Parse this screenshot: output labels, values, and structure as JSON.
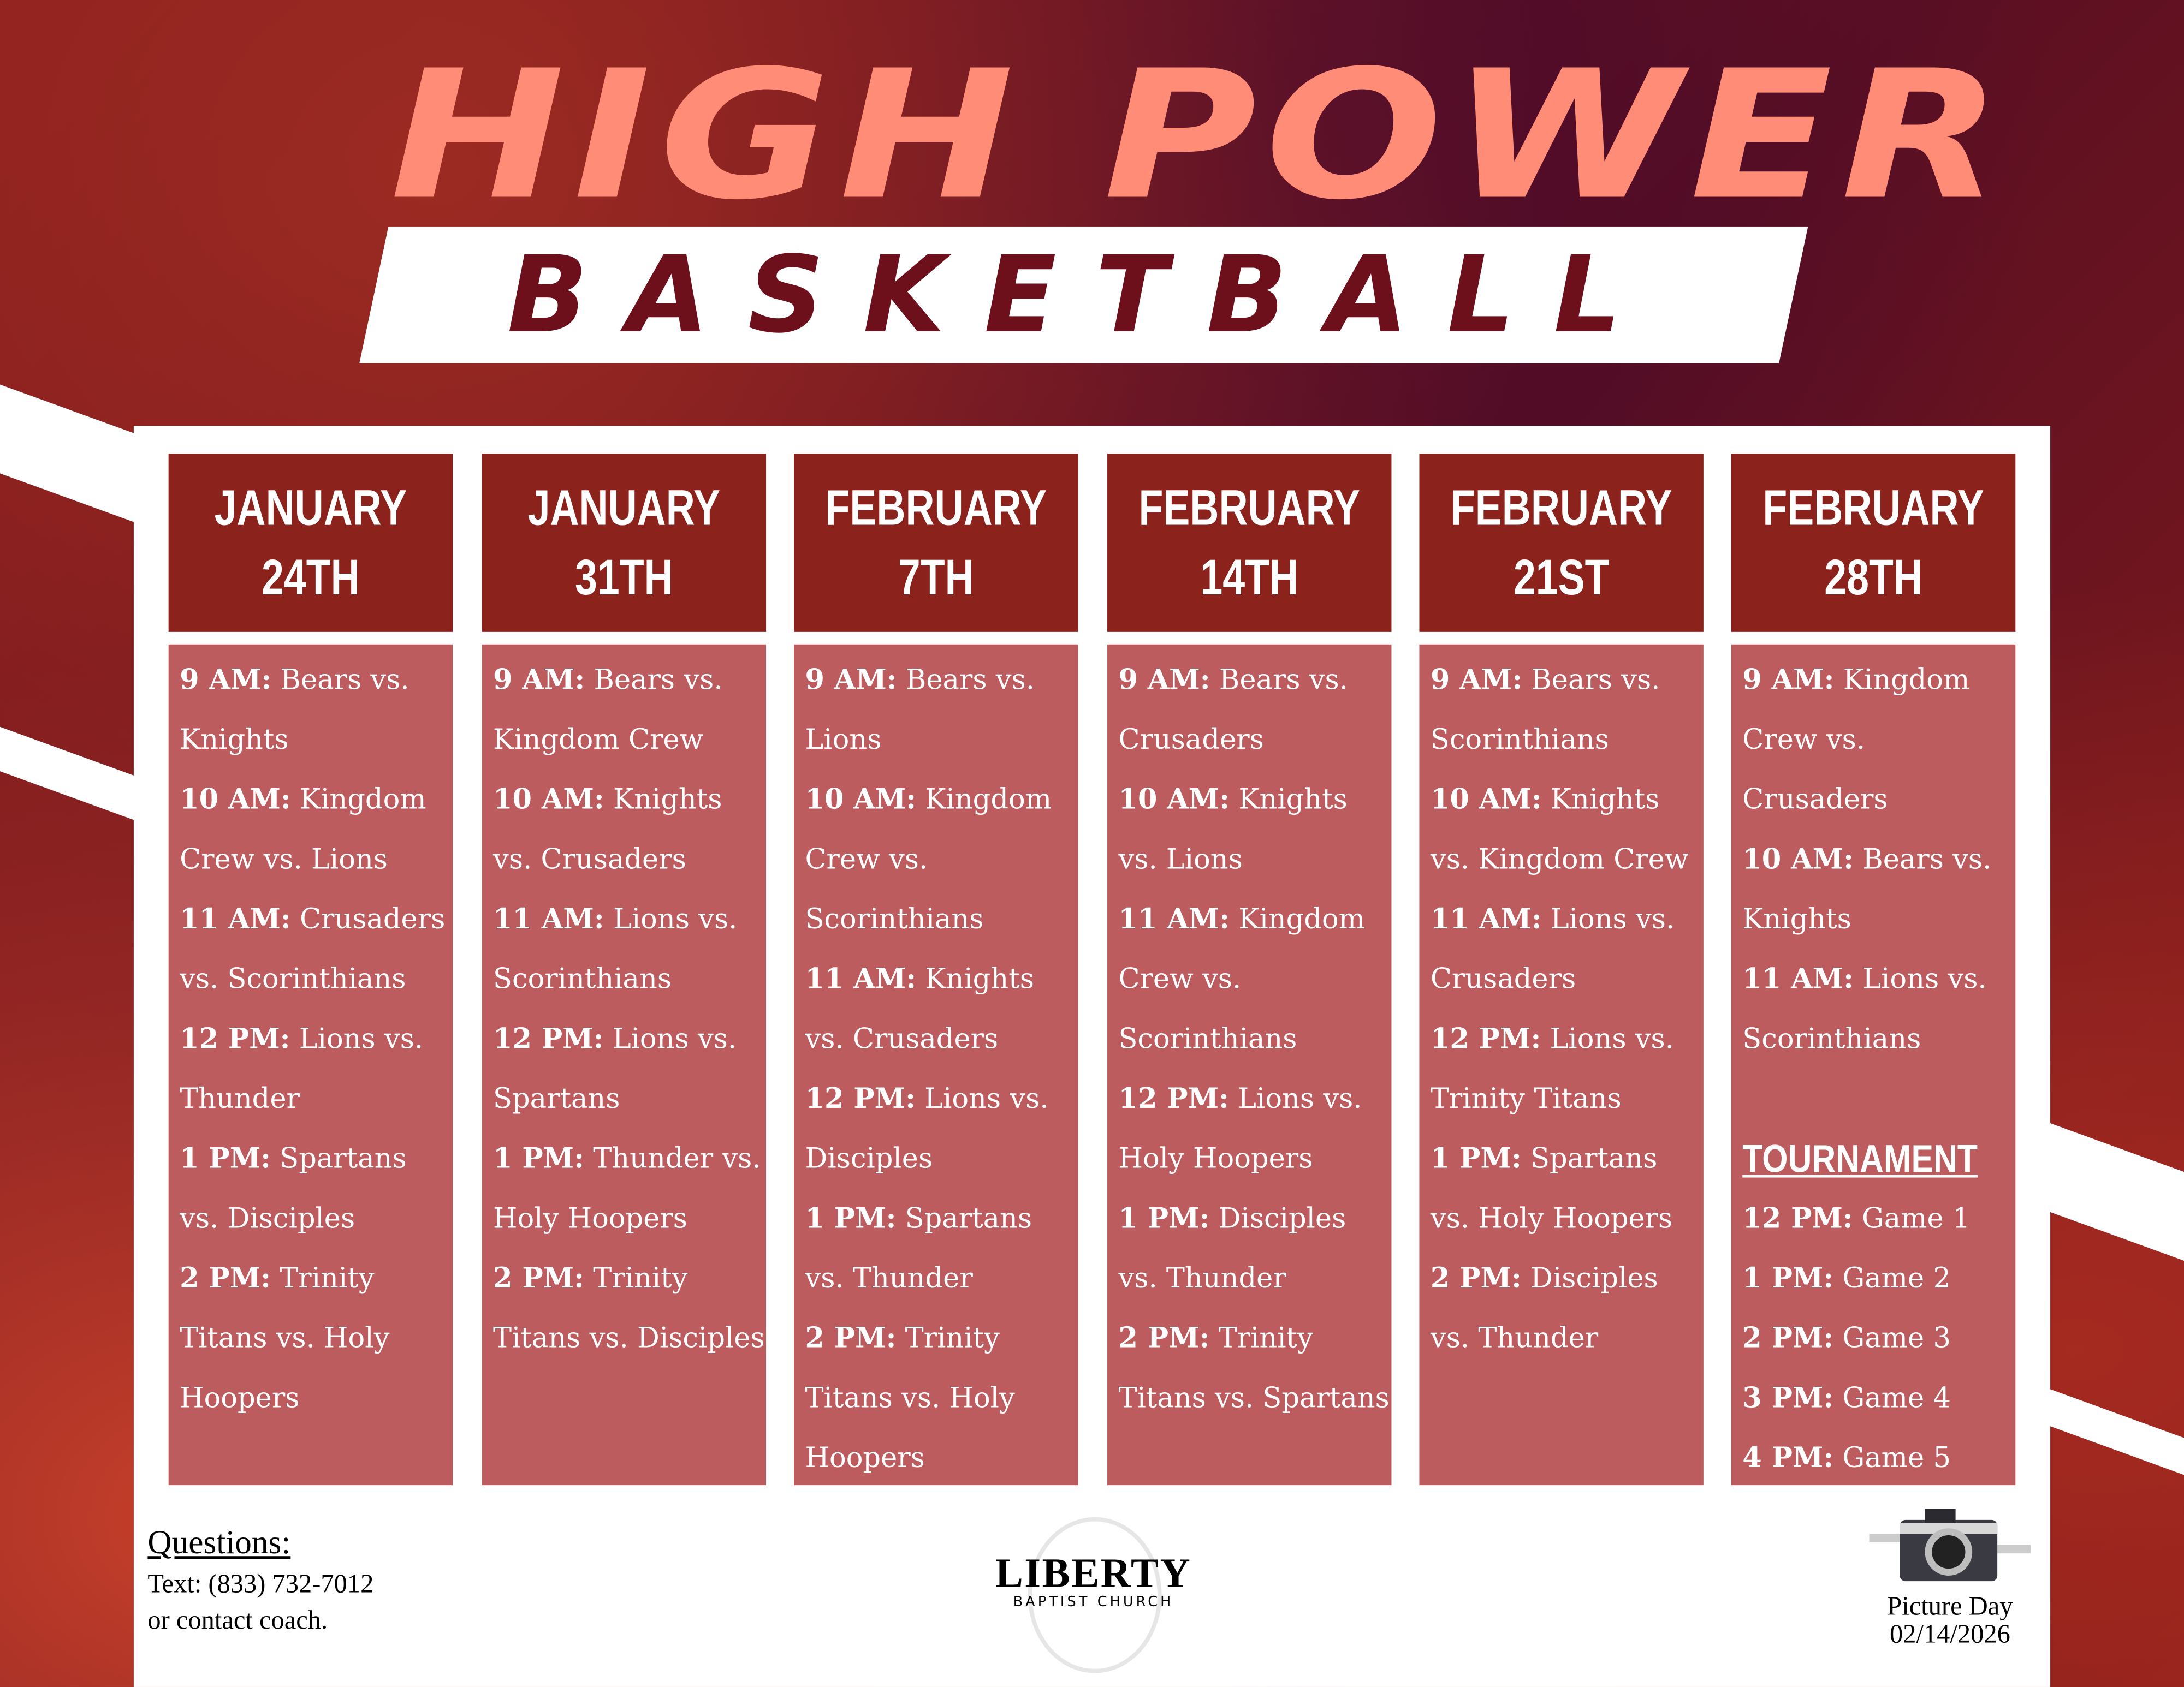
{
  "header": {
    "title": "HIGH POWER",
    "subtitle": "BASKETBALL"
  },
  "colors": {
    "title": "#ff8c76",
    "date_header": "#8b221c",
    "schedule_body": "#bd5c5e",
    "subtitle": "#6e101c"
  },
  "days": [
    {
      "month": "JANUARY",
      "day": "24TH",
      "games": [
        {
          "time": "9 AM:",
          "match": "Bears vs. Knights"
        },
        {
          "time": "10 AM:",
          "match": "Kingdom Crew vs. Lions"
        },
        {
          "time": "11 AM:",
          "match": "Crusaders vs. Scorinthians"
        },
        {
          "time": "12 PM:",
          "match": "Lions vs. Thunder"
        },
        {
          "time": "1 PM:",
          "match": "Spartans vs. Disciples"
        },
        {
          "time": "2 PM:",
          "match": "Trinity Titans vs. Holy Hoopers"
        }
      ]
    },
    {
      "month": "JANUARY",
      "day": "31TH",
      "games": [
        {
          "time": "9 AM:",
          "match": "Bears vs. Kingdom Crew"
        },
        {
          "time": "10 AM:",
          "match": "Knights vs. Crusaders"
        },
        {
          "time": "11 AM:",
          "match": "Lions vs. Scorinthians"
        },
        {
          "time": "12 PM:",
          "match": "Lions vs. Spartans"
        },
        {
          "time": "1 PM:",
          "match": "Thunder vs. Holy Hoopers"
        },
        {
          "time": "2 PM:",
          "match": "Trinity Titans vs. Disciples"
        }
      ]
    },
    {
      "month": "FEBRUARY",
      "day": "7TH",
      "games": [
        {
          "time": "9 AM:",
          "match": "Bears vs. Lions"
        },
        {
          "time": "10 AM:",
          "match": "Kingdom Crew vs. Scorinthians"
        },
        {
          "time": "11 AM:",
          "match": "Knights vs. Crusaders"
        },
        {
          "time": "12 PM:",
          "match": "Lions vs. Disciples"
        },
        {
          "time": "1 PM:",
          "match": "Spartans vs. Thunder"
        },
        {
          "time": "2 PM:",
          "match": "Trinity Titans vs. Holy Hoopers"
        }
      ]
    },
    {
      "month": "FEBRUARY",
      "day": "14TH",
      "games": [
        {
          "time": "9 AM:",
          "match": "Bears vs. Crusaders"
        },
        {
          "time": "10 AM:",
          "match": "Knights vs. Lions"
        },
        {
          "time": "11 AM:",
          "match": "Kingdom Crew vs. Scorinthians"
        },
        {
          "time": "12 PM:",
          "match": "Lions vs. Holy Hoopers"
        },
        {
          "time": "1 PM:",
          "match": "Disciples vs. Thunder"
        },
        {
          "time": "2 PM:",
          "match": "Trinity Titans vs. Spartans"
        }
      ]
    },
    {
      "month": "FEBRUARY",
      "day": "21ST",
      "games": [
        {
          "time": "9 AM:",
          "match": "Bears vs. Scorinthians"
        },
        {
          "time": "10 AM:",
          "match": "Knights vs. Kingdom Crew"
        },
        {
          "time": "11 AM:",
          "match": "Lions vs. Crusaders"
        },
        {
          "time": "12 PM:",
          "match": "Lions vs. Trinity Titans"
        },
        {
          "time": "1 PM:",
          "match": "Spartans vs. Holy Hoopers"
        },
        {
          "time": "2 PM:",
          "match": "Disciples vs. Thunder"
        }
      ]
    },
    {
      "month": "FEBRUARY",
      "day": "28TH",
      "games": [
        {
          "time": "9 AM:",
          "match": "Kingdom Crew vs. Crusaders"
        },
        {
          "time": "10 AM:",
          "match": "Bears vs. Knights"
        },
        {
          "time": "11 AM:",
          "match": "Lions vs. Scorinthians"
        }
      ],
      "tournament_label": "TOURNAMENT",
      "tournament": [
        {
          "time": "12 PM:",
          "match": "Game 1"
        },
        {
          "time": "1 PM:",
          "match": "Game 2"
        },
        {
          "time": "2 PM:",
          "match": "Game 3"
        },
        {
          "time": "3 PM:",
          "match": "Game 4"
        },
        {
          "time": "4 PM:",
          "match": "Game 5"
        }
      ]
    }
  ],
  "footer": {
    "questions_label": "Questions:",
    "contact_line1": "Text: (833) 732-7012",
    "contact_line2": "or contact coach.",
    "logo_name": "LIBERTY",
    "logo_sub": "BAPTIST CHURCH",
    "picture_label": "Picture Day",
    "picture_date": "02/14/2026",
    "camera_icon": "camera-icon"
  }
}
